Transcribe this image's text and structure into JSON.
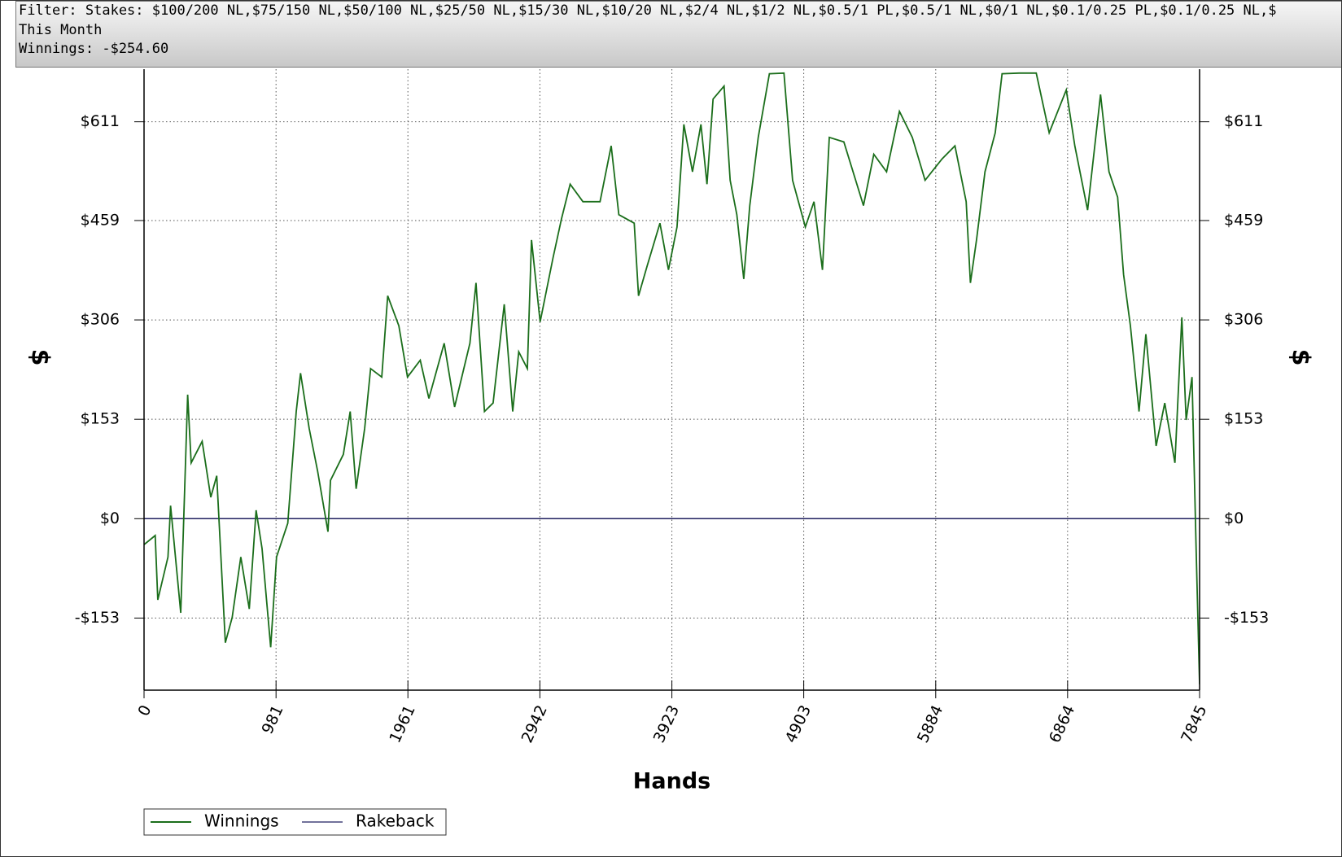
{
  "chart_data": {
    "type": "line",
    "filter": "Filter: Stakes: $100/200 NL,$75/150 NL,$50/100 NL,$25/50 NL,$15/30 NL,$10/20 NL,$2/4 NL,$1/2 NL,$0.5/1 PL,$0.5/1 NL,$0/1 NL,$0.1/0.25 PL,$0.1/0.25 NL,$",
    "period": "This Month",
    "summary": "Winnings: -$254.60",
    "xlabel": "Hands",
    "ylabel": "$",
    "xlim": [
      0,
      7845
    ],
    "xticks": [
      0,
      981,
      1961,
      2942,
      3923,
      4903,
      5884,
      6864,
      7845
    ],
    "ylim": [
      -264,
      692
    ],
    "yticks": [
      {
        "value": -153,
        "label": "-$153"
      },
      {
        "value": 0,
        "label": "$0"
      },
      {
        "value": 153,
        "label": "$153"
      },
      {
        "value": 306,
        "label": "$306"
      },
      {
        "value": 459,
        "label": "$459"
      },
      {
        "value": 611,
        "label": "$611"
      }
    ],
    "grid": true,
    "x": [
      0,
      83,
      102,
      178,
      197,
      273,
      324,
      350,
      432,
      496,
      540,
      604,
      655,
      719,
      782,
      833,
      877,
      941,
      985,
      1068,
      1131,
      1163,
      1227,
      1290,
      1367,
      1386,
      1481,
      1532,
      1576,
      1640,
      1684,
      1767,
      1811,
      1894,
      1958,
      2053,
      2117,
      2231,
      2308,
      2422,
      2467,
      2530,
      2594,
      2677,
      2740,
      2785,
      2849,
      2880,
      2944,
      3040,
      3103,
      3167,
      3262,
      3389,
      3472,
      3529,
      3643,
      3675,
      3739,
      3834,
      3898,
      3961,
      4012,
      4076,
      4139,
      4184,
      4229,
      4311,
      4356,
      4406,
      4457,
      4502,
      4565,
      4648,
      4756,
      4820,
      4915,
      4979,
      5042,
      5093,
      5201,
      5347,
      5424,
      5519,
      5614,
      5710,
      5805,
      5932,
      6027,
      6110,
      6142,
      6187,
      6250,
      6326,
      6377,
      6504,
      6631,
      6727,
      6854,
      6918,
      7013,
      7109,
      7172,
      7236,
      7280,
      7331,
      7395,
      7446,
      7522,
      7586,
      7662,
      7713,
      7745,
      7789,
      7821,
      7845
    ],
    "series": [
      {
        "name": "Winnings",
        "color": "#1b6e1b",
        "values": [
          -40,
          -26,
          -125,
          -59,
          20,
          -145,
          191,
          86,
          119,
          33,
          66,
          -191,
          -152,
          -59,
          -139,
          13,
          -46,
          -198,
          -59,
          -7,
          165,
          224,
          139,
          73,
          -20,
          59,
          99,
          165,
          46,
          139,
          231,
          218,
          343,
          297,
          218,
          244,
          185,
          270,
          172,
          270,
          363,
          165,
          178,
          330,
          165,
          257,
          231,
          429,
          303,
          402,
          462,
          515,
          488,
          488,
          574,
          468,
          455,
          343,
          389,
          455,
          383,
          449,
          607,
          534,
          607,
          515,
          646,
          666,
          521,
          468,
          369,
          482,
          587,
          685,
          686,
          521,
          449,
          488,
          383,
          587,
          580,
          482,
          561,
          534,
          627,
          587,
          521,
          554,
          574,
          488,
          363,
          429,
          534,
          594,
          685,
          686,
          686,
          594,
          660,
          574,
          475,
          653,
          534,
          495,
          376,
          297,
          165,
          284,
          112,
          178,
          86,
          310,
          152,
          218,
          -59,
          -255
        ]
      },
      {
        "name": "Rakeback",
        "color": "#1f1f5f",
        "values": [
          0,
          0,
          0,
          0,
          0,
          0,
          0,
          0,
          0,
          0,
          0,
          0,
          0,
          0,
          0,
          0,
          0,
          0,
          0,
          0,
          0,
          0,
          0,
          0,
          0,
          0,
          0,
          0,
          0,
          0,
          0,
          0,
          0,
          0,
          0,
          0,
          0,
          0,
          0,
          0,
          0,
          0,
          0,
          0,
          0,
          0,
          0,
          0,
          0,
          0,
          0,
          0,
          0,
          0,
          0,
          0,
          0,
          0,
          0,
          0,
          0,
          0,
          0,
          0,
          0,
          0,
          0,
          0,
          0,
          0,
          0,
          0,
          0,
          0,
          0,
          0,
          0,
          0,
          0,
          0,
          0,
          0,
          0,
          0,
          0,
          0,
          0,
          0,
          0,
          0,
          0,
          0,
          0,
          0,
          0,
          0,
          0,
          0,
          0,
          0,
          0,
          0,
          0,
          0,
          0,
          0,
          0,
          0,
          0,
          0,
          0,
          0,
          0,
          0,
          0,
          0
        ]
      }
    ]
  }
}
